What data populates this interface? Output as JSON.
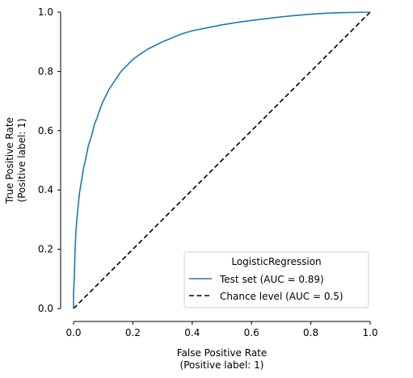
{
  "chart_data": {
    "type": "line",
    "xlabel": [
      "False Positive Rate",
      "(Positive label: 1)"
    ],
    "ylabel": [
      "True Positive Rate",
      "(Positive label: 1)"
    ],
    "xlim": [
      0.0,
      1.0
    ],
    "ylim": [
      0.0,
      1.0
    ],
    "xticks": [
      "0.0",
      "0.2",
      "0.4",
      "0.6",
      "0.8",
      "1.0"
    ],
    "yticks": [
      "0.0",
      "0.2",
      "0.4",
      "0.6",
      "0.8",
      "1.0"
    ],
    "grid": false,
    "legend": {
      "title": "LogisticRegression",
      "placement": "lower-right"
    },
    "series": [
      {
        "name": "Test set (AUC = 0.89)",
        "style": "solid",
        "color": "#1f77b4",
        "x": [
          0.0,
          0.0,
          0.003,
          0.005,
          0.008,
          0.012,
          0.016,
          0.02,
          0.025,
          0.03,
          0.035,
          0.04,
          0.05,
          0.06,
          0.07,
          0.08,
          0.09,
          0.1,
          0.12,
          0.14,
          0.16,
          0.18,
          0.2,
          0.22,
          0.25,
          0.28,
          0.3,
          0.33,
          0.36,
          0.4,
          0.45,
          0.5,
          0.55,
          0.6,
          0.65,
          0.7,
          0.75,
          0.8,
          0.85,
          0.9,
          0.95,
          1.0
        ],
        "y": [
          0.0,
          0.05,
          0.12,
          0.19,
          0.26,
          0.31,
          0.35,
          0.39,
          0.42,
          0.45,
          0.48,
          0.5,
          0.55,
          0.58,
          0.62,
          0.645,
          0.675,
          0.7,
          0.74,
          0.77,
          0.8,
          0.82,
          0.84,
          0.855,
          0.875,
          0.89,
          0.9,
          0.912,
          0.925,
          0.937,
          0.947,
          0.957,
          0.965,
          0.972,
          0.978,
          0.984,
          0.989,
          0.993,
          0.996,
          0.998,
          0.999,
          1.0
        ]
      },
      {
        "name": "Chance level (AUC = 0.5)",
        "style": "dashed",
        "color": "#000000",
        "x": [
          0.0,
          1.0
        ],
        "y": [
          0.0,
          1.0
        ]
      }
    ]
  }
}
